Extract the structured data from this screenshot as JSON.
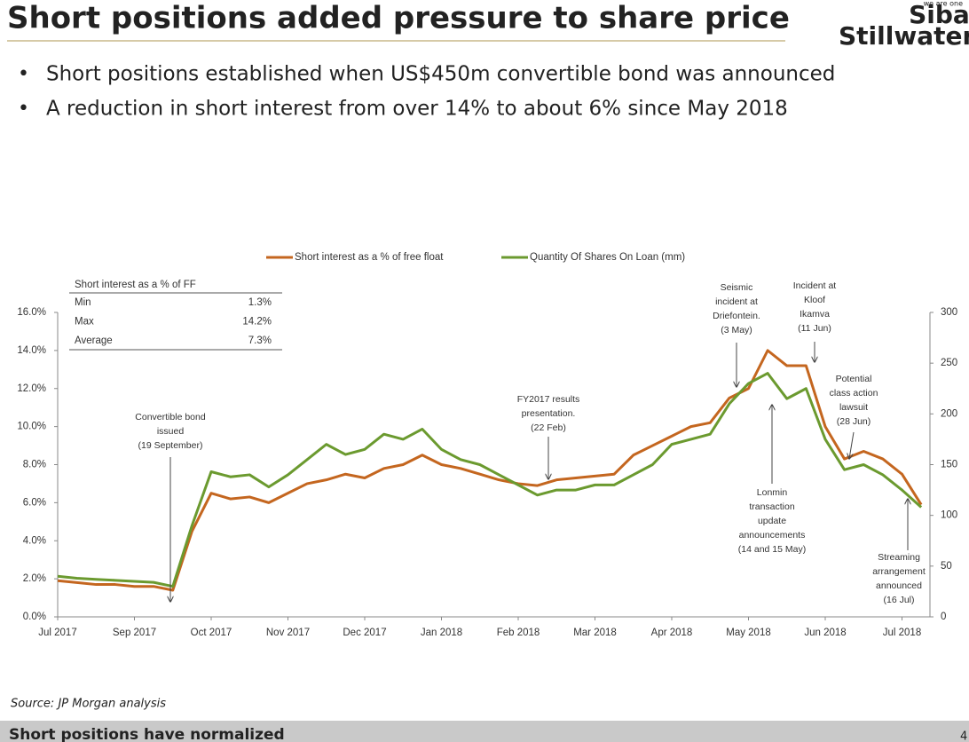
{
  "header": {
    "title": "Short positions added pressure to share price",
    "logo_tag": "we are one",
    "logo_line1": "Sibanye",
    "logo_line2": "Stillwater"
  },
  "bullets": [
    "Short positions established when US$450m convertible bond was announced",
    "A reduction in short interest from over 14% to about 6% since May 2018"
  ],
  "chart_data": {
    "type": "line",
    "categories": [
      "Jul 2017",
      null,
      null,
      null,
      "Sep 2017",
      null,
      null,
      null,
      "Oct 2017",
      null,
      null,
      null,
      "Nov 2017",
      null,
      null,
      null,
      "Dec 2017",
      null,
      null,
      null,
      "Jan 2018",
      null,
      null,
      null,
      "Feb 2018",
      null,
      null,
      null,
      "Mar 2018",
      null,
      null,
      null,
      "Apr 2018",
      null,
      null,
      null,
      "May 2018",
      null,
      null,
      null,
      "Jun 2018",
      null,
      null,
      null,
      "Jul 2018",
      null
    ],
    "series": [
      {
        "name": "Short interest as a % of free float",
        "color": "#c4661f",
        "axis": "y",
        "values": [
          1.9,
          1.8,
          1.7,
          1.7,
          1.6,
          1.6,
          1.4,
          4.5,
          6.5,
          6.2,
          6.3,
          6.0,
          6.5,
          7.0,
          7.2,
          7.5,
          7.3,
          7.8,
          8.0,
          8.5,
          8.0,
          7.8,
          7.5,
          7.2,
          7.0,
          6.9,
          7.2,
          7.3,
          7.4,
          7.5,
          8.5,
          9.0,
          9.5,
          10.0,
          10.2,
          11.5,
          12.0,
          14.0,
          13.2,
          13.2,
          10.0,
          8.3,
          8.7,
          8.3,
          7.5,
          5.9
        ]
      },
      {
        "name": "Quantity Of Shares On Loan (mm)",
        "color": "#6b9a2f",
        "axis": "y2",
        "values": [
          40,
          38,
          37,
          36,
          35,
          34,
          30,
          90,
          143,
          138,
          140,
          128,
          140,
          155,
          170,
          160,
          165,
          180,
          175,
          185,
          165,
          155,
          150,
          140,
          130,
          120,
          125,
          125,
          130,
          130,
          140,
          150,
          170,
          175,
          180,
          210,
          230,
          240,
          215,
          225,
          175,
          145,
          150,
          140,
          125,
          108
        ]
      }
    ],
    "ylim": [
      0,
      16
    ],
    "yticks": [
      {
        "value": 0,
        "label": "0.0%"
      },
      {
        "value": 2,
        "label": "2.0%"
      },
      {
        "value": 4,
        "label": "4.0%"
      },
      {
        "value": 6,
        "label": "6.0%"
      },
      {
        "value": 8,
        "label": "8.0%"
      },
      {
        "value": 10,
        "label": "10.0%"
      },
      {
        "value": 12,
        "label": "12.0%"
      },
      {
        "value": 14,
        "label": "14.0%"
      },
      {
        "value": 16,
        "label": "16.0%"
      }
    ],
    "y2lim": [
      0,
      300
    ],
    "y2ticks": [
      0,
      50,
      100,
      150,
      200,
      250,
      300
    ],
    "legend": "top",
    "inset_table": {
      "title": "Short interest as a % of FF",
      "rows": [
        [
          "Min",
          "1.3%"
        ],
        [
          "Max",
          "14.2%"
        ],
        [
          "Average",
          "7.3%"
        ]
      ]
    },
    "annotations": [
      [
        "Convertible bond",
        "issued",
        "(19 September)"
      ],
      [
        "FY2017 results",
        "presentation.",
        "(22 Feb)"
      ],
      [
        "Seismic",
        "incident at",
        "Driefontein.",
        "(3 May)"
      ],
      [
        "Incident at",
        "Kloof",
        "Ikamva",
        "(11 Jun)"
      ],
      [
        "Potential",
        "class action",
        "lawsuit",
        "(28 Jun)"
      ],
      [
        "Lonmin",
        "transaction",
        "update",
        "announcements",
        "(14 and 15 May)"
      ],
      [
        "Streaming",
        "arrangement",
        "announced",
        "(16 Jul)"
      ]
    ]
  },
  "source": "Source: JP Morgan analysis",
  "footer": {
    "text": "Short positions have normalized",
    "page": "4"
  }
}
